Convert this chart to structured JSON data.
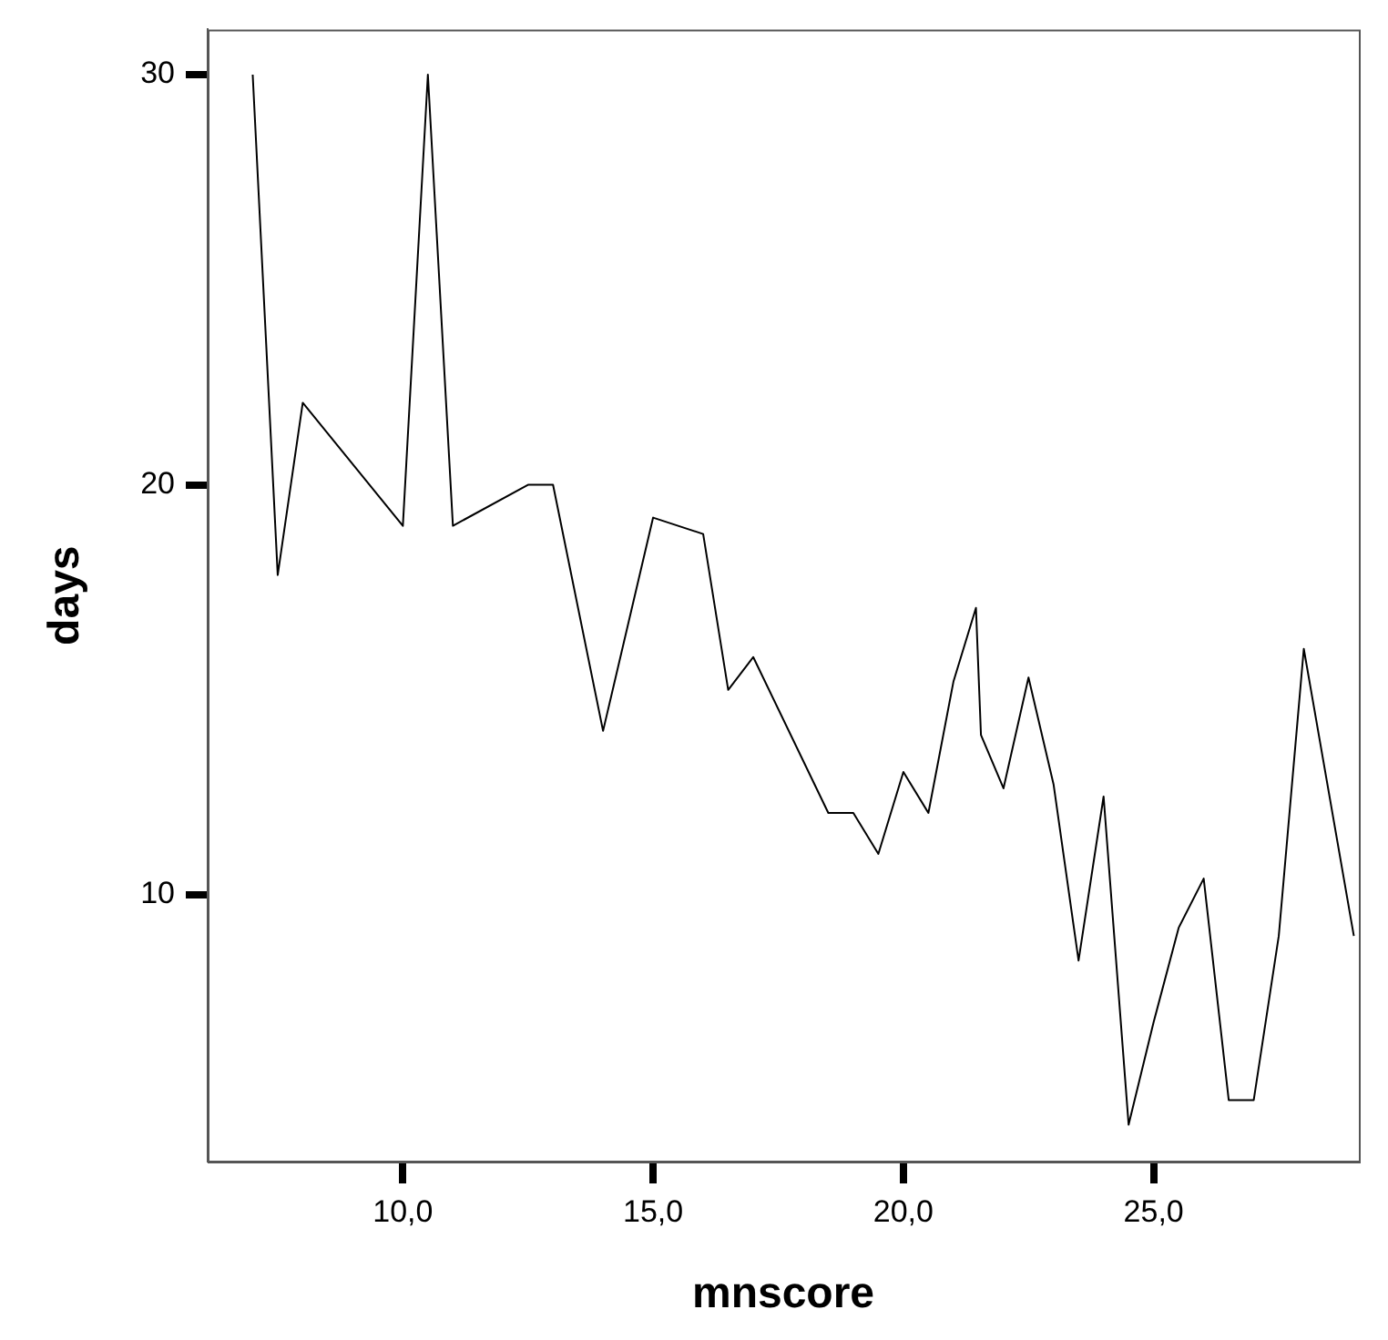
{
  "chart_data": {
    "type": "line",
    "xlabel": "mnscore",
    "ylabel": "days",
    "x": [
      7.0,
      7.5,
      8.0,
      10.0,
      10.5,
      11.0,
      12.5,
      13.0,
      14.0,
      15.0,
      16.0,
      16.5,
      17.0,
      18.5,
      19.0,
      19.5,
      20.0,
      20.5,
      21.0,
      21.45,
      21.55,
      22.0,
      22.5,
      23.0,
      23.5,
      24.0,
      24.5,
      25.0,
      25.5,
      26.0,
      26.5,
      27.0,
      27.5,
      28.0,
      29.0
    ],
    "series": [
      {
        "color": "#000000",
        "values": [
          30,
          17.8,
          22.0,
          19.0,
          30,
          19.0,
          20,
          20,
          14.0,
          19.2,
          18.8,
          15.0,
          15.8,
          12.0,
          12.0,
          11.0,
          13.0,
          12.0,
          15.2,
          17.0,
          13.9,
          12.6,
          15.3,
          12.7,
          8.4,
          12.4,
          4.4,
          6.9,
          9.2,
          10.4,
          5.0,
          5.0,
          9.0,
          16.0,
          9.0
        ]
      }
    ],
    "xlim": [
      6.1,
      29.1
    ],
    "ylim": [
      3.5,
      31.1
    ],
    "xticks": [
      {
        "value": 10,
        "label": "10,0"
      },
      {
        "value": 15,
        "label": "15,0"
      },
      {
        "value": 20,
        "label": "20,0"
      },
      {
        "value": 25,
        "label": "25,0"
      }
    ],
    "yticks": [
      10,
      20,
      30
    ],
    "grid": false,
    "legend": false,
    "marker": "none",
    "line_style": "solid"
  }
}
